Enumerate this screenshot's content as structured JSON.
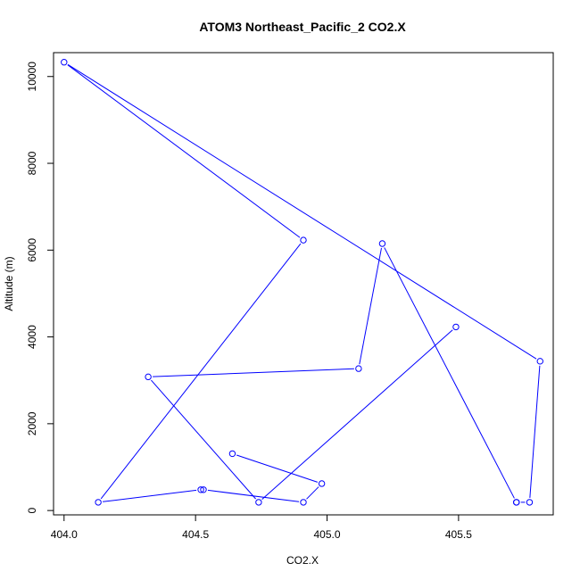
{
  "chart_data": {
    "type": "line",
    "title": "ATOM3 Northeast_Pacific_2 CO2.X",
    "xlabel": "CO2.X",
    "ylabel": "Altitude (m)",
    "xlim": [
      403.96,
      405.86
    ],
    "ylim": [
      -100,
      10550
    ],
    "x_ticks": [
      404.0,
      404.5,
      405.0,
      405.5
    ],
    "x_tick_labels": [
      "404.0",
      "404.5",
      "405.0",
      "405.5"
    ],
    "y_ticks": [
      0,
      2000,
      4000,
      6000,
      8000,
      10000
    ],
    "y_tick_labels": [
      "0",
      "2000",
      "4000",
      "6000",
      "8000",
      "10000"
    ],
    "grid": false,
    "series": [
      {
        "marker": "open-circle",
        "color": "#0000ff",
        "points": [
          {
            "x": 404.64,
            "y": 1310
          },
          {
            "x": 404.98,
            "y": 620
          },
          {
            "x": 404.91,
            "y": 190
          },
          {
            "x": 404.53,
            "y": 480
          },
          {
            "x": 404.52,
            "y": 480
          },
          {
            "x": 404.13,
            "y": 190
          },
          {
            "x": 404.91,
            "y": 6230
          },
          {
            "x": 404.0,
            "y": 10330
          },
          {
            "x": 405.81,
            "y": 3440
          },
          {
            "x": 405.77,
            "y": 190
          },
          {
            "x": 405.72,
            "y": 190
          }
        ]
      },
      {
        "marker": "open-circle",
        "color": "#0000ff",
        "points": [
          {
            "x": 405.72,
            "y": 190
          },
          {
            "x": 405.21,
            "y": 6150
          },
          {
            "x": 405.12,
            "y": 3270
          },
          {
            "x": 404.32,
            "y": 3080
          },
          {
            "x": 404.74,
            "y": 190
          },
          {
            "x": 405.49,
            "y": 4230
          }
        ]
      }
    ]
  }
}
